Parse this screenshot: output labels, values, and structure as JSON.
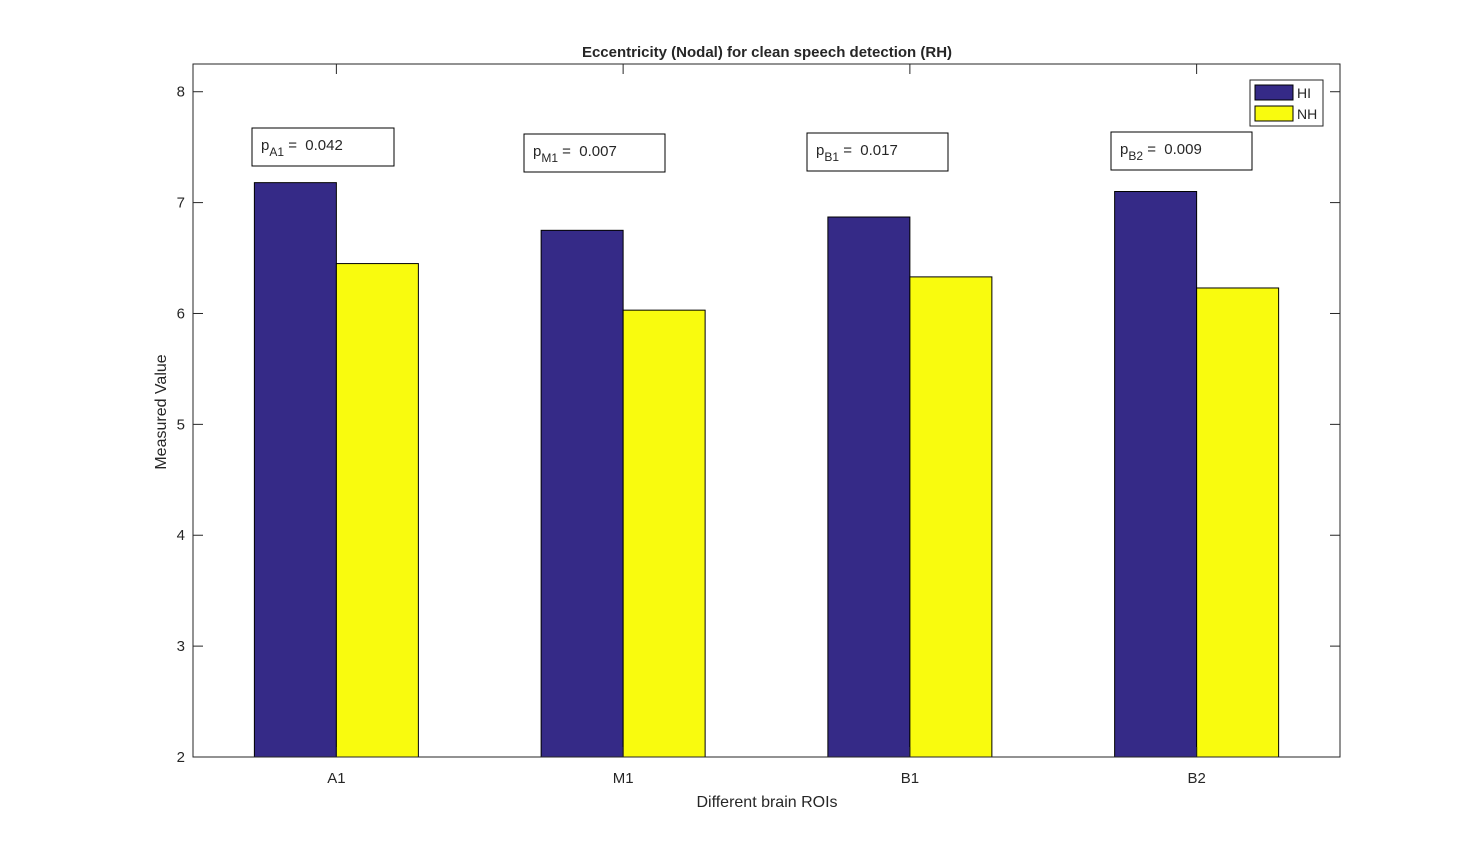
{
  "chart_data": {
    "type": "bar",
    "title": "Eccentricity (Nodal) for clean speech detection (RH)",
    "xlabel": "Different brain ROIs",
    "ylabel": "Measured Value",
    "categories": [
      "A1",
      "M1",
      "B1",
      "B2"
    ],
    "ylim": [
      2,
      8.25
    ],
    "yticks": [
      "2",
      "3",
      "4",
      "5",
      "6",
      "7",
      "8"
    ],
    "grid": false,
    "legend_position": "top-right",
    "series": [
      {
        "name": "HI",
        "color": "#352a87",
        "values": [
          7.18,
          6.75,
          6.87,
          7.1
        ]
      },
      {
        "name": "NH",
        "color": "#f9fb0e",
        "values": [
          6.45,
          6.03,
          6.33,
          6.23
        ]
      }
    ],
    "annotations": [
      {
        "p": "p",
        "sub": "A1",
        "eq": "=",
        "value": "0.042"
      },
      {
        "p": "p",
        "sub": "M1",
        "eq": "=",
        "value": "0.007"
      },
      {
        "p": "p",
        "sub": "B1",
        "eq": "=",
        "value": "0.017"
      },
      {
        "p": "p",
        "sub": "B2",
        "eq": "=",
        "value": "0.009"
      }
    ]
  }
}
